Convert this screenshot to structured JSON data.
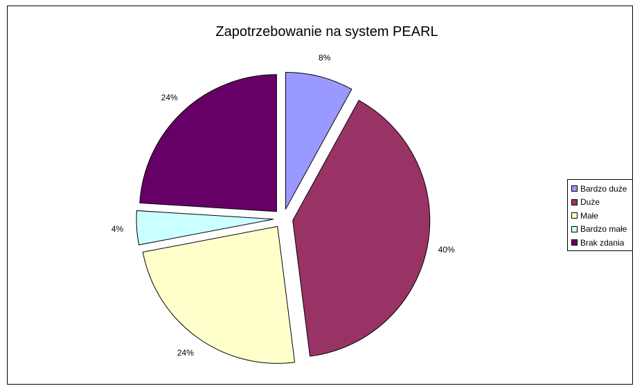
{
  "chart_data": {
    "type": "pie",
    "title": "Zapotrzebowanie na system PEARL",
    "categories": [
      "Bardzo duże",
      "Duże",
      "Małe",
      "Bardzo małe",
      "Brak zdania"
    ],
    "values": [
      8,
      40,
      24,
      4,
      24
    ],
    "data_labels": [
      "8%",
      "40%",
      "24%",
      "4%",
      "24%"
    ],
    "colors": [
      "#9999FF",
      "#993366",
      "#FFFFCC",
      "#CCFFFF",
      "#660066"
    ],
    "exploded": true,
    "legend_position": "right"
  }
}
